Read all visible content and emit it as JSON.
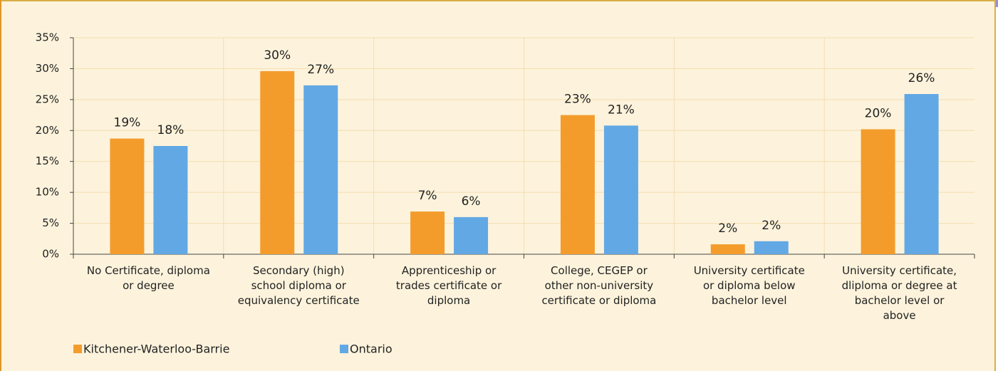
{
  "chart_data": {
    "type": "bar",
    "categories": [
      "No Certificate, diploma or degree",
      "Secondary (high) school diploma or equivalency certificate",
      "Apprenticeship or trades certificate or diploma",
      "College, CEGEP or other non-university certificate or diploma",
      "University certificate or diploma below bachelor level",
      "University certificate, dliploma or degree at bachelor level or above"
    ],
    "series": [
      {
        "name": "Kitchener-Waterloo-Barrie",
        "color": "#f39c2c",
        "values": [
          18.7,
          29.6,
          6.9,
          22.5,
          1.6,
          20.2
        ],
        "value_labels": [
          "19%",
          "30%",
          "7%",
          "23%",
          "2%",
          "20%"
        ]
      },
      {
        "name": "Ontario",
        "color": "#62a8e5",
        "values": [
          17.5,
          27.3,
          6.0,
          20.8,
          2.1,
          25.9
        ],
        "value_labels": [
          "18%",
          "27%",
          "6%",
          "21%",
          "2%",
          "26%"
        ]
      }
    ],
    "ylim": [
      0,
      35
    ],
    "yticks": [
      {
        "value": 0,
        "label": "0%"
      },
      {
        "value": 5,
        "label": "5%"
      },
      {
        "value": 10,
        "label": "10%"
      },
      {
        "value": 15,
        "label": "15%"
      },
      {
        "value": 20,
        "label": "20%"
      },
      {
        "value": 25,
        "label": "25%"
      },
      {
        "value": 30,
        "label": "30%"
      },
      {
        "value": 35,
        "label": "35%"
      }
    ],
    "grid": true,
    "legend": "bottom"
  }
}
